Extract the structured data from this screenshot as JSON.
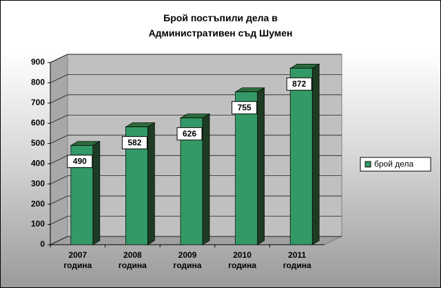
{
  "chart_data": {
    "type": "bar",
    "title": "Брой постъпили дела в Административен съд Шумен",
    "categories": [
      "2007 година",
      "2008 година",
      "2009 година",
      "2010 година",
      "2011 година"
    ],
    "series": [
      {
        "name": "брой дела",
        "color": "#339966",
        "values": [
          490,
          582,
          626,
          755,
          872
        ]
      }
    ],
    "ylim": [
      0,
      900
    ],
    "yticks": [
      0,
      100,
      200,
      300,
      400,
      500,
      600,
      700,
      800,
      900
    ],
    "grid": true,
    "legend": "right"
  }
}
